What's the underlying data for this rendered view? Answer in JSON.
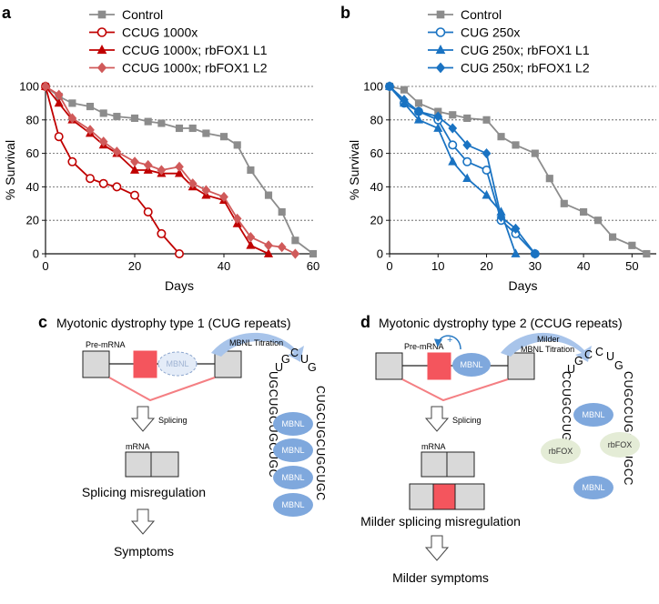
{
  "panels": {
    "a": "a",
    "b": "b",
    "c": "c",
    "d": "d"
  },
  "chart_data": [
    {
      "type": "line",
      "panel": "a",
      "xlabel": "Days",
      "ylabel": "% Survival",
      "xlim": [
        0,
        60
      ],
      "ylim": [
        0,
        100
      ],
      "xticks": [
        0,
        20,
        40,
        60
      ],
      "yticks": [
        0,
        20,
        40,
        60,
        80,
        100
      ],
      "grid": "horizontal dashed",
      "legend_placement": "top-left, above plot",
      "series": [
        {
          "name": "Control",
          "color": "#8c8c8c",
          "marker": "square",
          "hollow": false,
          "points": [
            [
              0,
              100
            ],
            [
              3,
              94
            ],
            [
              6,
              90
            ],
            [
              10,
              88
            ],
            [
              13,
              84
            ],
            [
              16,
              82
            ],
            [
              20,
              81
            ],
            [
              23,
              79
            ],
            [
              26,
              78
            ],
            [
              30,
              75
            ],
            [
              33,
              75
            ],
            [
              36,
              72
            ],
            [
              40,
              70
            ],
            [
              43,
              65
            ],
            [
              46,
              50
            ],
            [
              50,
              35
            ],
            [
              53,
              25
            ],
            [
              56,
              8
            ],
            [
              60,
              0
            ]
          ]
        },
        {
          "name": "CCUG 1000x",
          "color": "#c00000",
          "marker": "circle",
          "hollow": true,
          "points": [
            [
              0,
              100
            ],
            [
              3,
              70
            ],
            [
              6,
              55
            ],
            [
              10,
              45
            ],
            [
              13,
              42
            ],
            [
              16,
              40
            ],
            [
              20,
              35
            ],
            [
              23,
              25
            ],
            [
              26,
              12
            ],
            [
              30,
              0
            ]
          ]
        },
        {
          "name": "CCUG 1000x; rbFOX1 L1",
          "color": "#c00000",
          "marker": "triangle",
          "hollow": false,
          "points": [
            [
              0,
              100
            ],
            [
              3,
              90
            ],
            [
              6,
              80
            ],
            [
              10,
              72
            ],
            [
              13,
              65
            ],
            [
              16,
              60
            ],
            [
              20,
              50
            ],
            [
              23,
              50
            ],
            [
              26,
              48
            ],
            [
              30,
              48
            ],
            [
              33,
              40
            ],
            [
              36,
              35
            ],
            [
              40,
              32
            ],
            [
              43,
              18
            ],
            [
              46,
              5
            ],
            [
              50,
              0
            ]
          ]
        },
        {
          "name": "CCUG 1000x; rbFOX1 L2",
          "color": "#d05a5a",
          "marker": "diamond",
          "hollow": false,
          "points": [
            [
              0,
              100
            ],
            [
              3,
              95
            ],
            [
              6,
              81
            ],
            [
              10,
              74
            ],
            [
              13,
              67
            ],
            [
              16,
              61
            ],
            [
              20,
              55
            ],
            [
              23,
              53
            ],
            [
              26,
              50
            ],
            [
              30,
              52
            ],
            [
              33,
              42
            ],
            [
              36,
              38
            ],
            [
              40,
              34
            ],
            [
              43,
              21
            ],
            [
              46,
              10
            ],
            [
              50,
              5
            ],
            [
              53,
              4
            ],
            [
              56,
              0
            ]
          ]
        }
      ]
    },
    {
      "type": "line",
      "panel": "b",
      "xlabel": "Days",
      "ylabel": "% Survival",
      "xlim": [
        0,
        55
      ],
      "ylim": [
        0,
        100
      ],
      "xticks": [
        0,
        10,
        20,
        30,
        40,
        50
      ],
      "yticks": [
        0,
        20,
        40,
        60,
        80,
        100
      ],
      "grid": "horizontal dashed",
      "legend_placement": "top-left, above plot",
      "series": [
        {
          "name": "Control",
          "color": "#8c8c8c",
          "marker": "square",
          "hollow": false,
          "points": [
            [
              0,
              100
            ],
            [
              3,
              98
            ],
            [
              6,
              90
            ],
            [
              10,
              85
            ],
            [
              13,
              83
            ],
            [
              16,
              81
            ],
            [
              20,
              80
            ],
            [
              23,
              70
            ],
            [
              26,
              65
            ],
            [
              30,
              60
            ],
            [
              33,
              45
            ],
            [
              36,
              30
            ],
            [
              40,
              25
            ],
            [
              43,
              20
            ],
            [
              46,
              10
            ],
            [
              50,
              5
            ],
            [
              53,
              0
            ]
          ]
        },
        {
          "name": "CUG 250x",
          "color": "#1a73c2",
          "marker": "circle",
          "hollow": true,
          "points": [
            [
              0,
              100
            ],
            [
              3,
              90
            ],
            [
              6,
              85
            ],
            [
              10,
              80
            ],
            [
              13,
              65
            ],
            [
              16,
              55
            ],
            [
              20,
              50
            ],
            [
              23,
              20
            ],
            [
              26,
              12
            ],
            [
              30,
              0
            ]
          ]
        },
        {
          "name": "CUG 250x; rbFOX1 L1",
          "color": "#1a73c2",
          "marker": "triangle",
          "hollow": false,
          "points": [
            [
              0,
              100
            ],
            [
              3,
              90
            ],
            [
              6,
              80
            ],
            [
              10,
              75
            ],
            [
              13,
              55
            ],
            [
              16,
              45
            ],
            [
              20,
              35
            ],
            [
              23,
              25
            ],
            [
              26,
              0
            ]
          ]
        },
        {
          "name": "CUG 250x; rbFOX1 L2",
          "color": "#1a73c2",
          "marker": "diamond",
          "hollow": false,
          "points": [
            [
              0,
              100
            ],
            [
              3,
              92
            ],
            [
              6,
              85
            ],
            [
              10,
              82
            ],
            [
              13,
              75
            ],
            [
              16,
              65
            ],
            [
              20,
              60
            ],
            [
              23,
              22
            ],
            [
              26,
              15
            ],
            [
              30,
              0
            ]
          ]
        }
      ]
    }
  ],
  "panel_c": {
    "title": "Myotonic dystrophy type 1 (CUG repeats)",
    "pre_mrna": "Pre-mRNA",
    "titration": "MBNL Titration",
    "mbnl": "MBNL",
    "splicing": "Splicing",
    "mrna": "mRNA",
    "outcome": "Splicing misregulation",
    "symptoms": "Symptoms",
    "seq_left": "UGCUGCUGCUGC",
    "seq_top": "UGCUG",
    "seq_right": "CUGCUGCUGCUGC"
  },
  "panel_d": {
    "title": "Myotonic dystrophy type 2 (CCUG repeats)",
    "pre_mrna": "Pre-mRNA",
    "plus": "+",
    "titration_1": "Milder",
    "titration_2": "MBNL Titration",
    "mbnl": "MBNL",
    "rbfox": "rbFOX",
    "splicing": "Splicing",
    "mrna": "mRNA",
    "outcome": "Milder splicing misregulation",
    "symptoms": "Milder symptoms",
    "seq_left": "CCUGCCUGCC",
    "seq_top": "UGCCUG",
    "seq_right": "CUGCCUGCCUGCC"
  }
}
